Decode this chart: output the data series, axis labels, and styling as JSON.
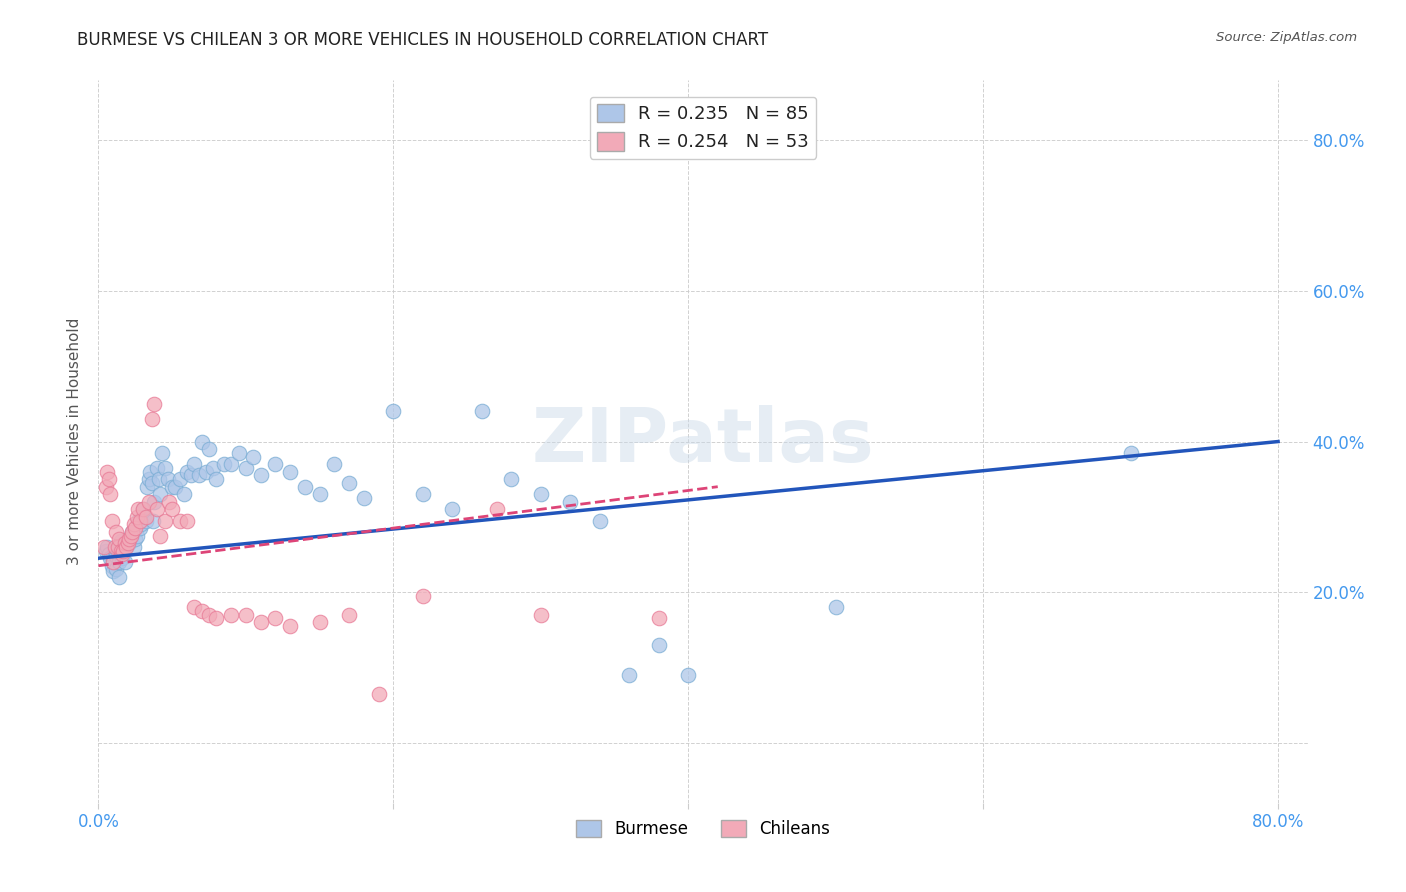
{
  "title": "BURMESE VS CHILEAN 3 OR MORE VEHICLES IN HOUSEHOLD CORRELATION CHART",
  "source": "Source: ZipAtlas.com",
  "ylabel": "3 or more Vehicles in Household",
  "xlim": [
    0.0,
    0.82
  ],
  "ylim": [
    -0.08,
    0.88
  ],
  "xticks": [
    0.0,
    0.2,
    0.4,
    0.6,
    0.8
  ],
  "yticks": [
    0.0,
    0.2,
    0.4,
    0.6,
    0.8
  ],
  "xticklabels": [
    "0.0%",
    "",
    "",
    "",
    "80.0%"
  ],
  "yticklabels_right": [
    "",
    "20.0%",
    "40.0%",
    "60.0%",
    "80.0%"
  ],
  "burmese_color": "#aec6e8",
  "chilean_color": "#f2aab8",
  "burmese_edge_color": "#7aadd4",
  "chilean_edge_color": "#e87a96",
  "burmese_line_color": "#2255bb",
  "chilean_line_color": "#dd4477",
  "burmese_R": 0.235,
  "burmese_N": 85,
  "chilean_R": 0.254,
  "chilean_N": 53,
  "watermark": "ZIPatlas",
  "legend_label_burmese": "Burmese",
  "legend_label_chilean": "Chileans",
  "burmese_line_x0": 0.0,
  "burmese_line_y0": 0.245,
  "burmese_line_x1": 0.8,
  "burmese_line_y1": 0.4,
  "chilean_line_x0": 0.0,
  "chilean_line_y0": 0.235,
  "chilean_line_x1": 0.42,
  "chilean_line_y1": 0.34,
  "burmese_x": [
    0.005,
    0.006,
    0.007,
    0.008,
    0.009,
    0.01,
    0.01,
    0.011,
    0.012,
    0.012,
    0.013,
    0.013,
    0.014,
    0.014,
    0.015,
    0.015,
    0.016,
    0.016,
    0.017,
    0.018,
    0.019,
    0.02,
    0.021,
    0.022,
    0.023,
    0.024,
    0.025,
    0.026,
    0.027,
    0.028,
    0.029,
    0.03,
    0.031,
    0.032,
    0.033,
    0.034,
    0.035,
    0.036,
    0.037,
    0.038,
    0.04,
    0.041,
    0.042,
    0.043,
    0.045,
    0.047,
    0.05,
    0.052,
    0.055,
    0.058,
    0.06,
    0.063,
    0.065,
    0.068,
    0.07,
    0.073,
    0.075,
    0.078,
    0.08,
    0.085,
    0.09,
    0.095,
    0.1,
    0.105,
    0.11,
    0.12,
    0.13,
    0.14,
    0.15,
    0.16,
    0.17,
    0.18,
    0.2,
    0.22,
    0.24,
    0.26,
    0.28,
    0.3,
    0.32,
    0.34,
    0.36,
    0.38,
    0.4,
    0.5,
    0.7
  ],
  "burmese_y": [
    0.255,
    0.26,
    0.25,
    0.245,
    0.235,
    0.228,
    0.24,
    0.255,
    0.248,
    0.23,
    0.26,
    0.25,
    0.24,
    0.22,
    0.26,
    0.268,
    0.258,
    0.245,
    0.255,
    0.24,
    0.26,
    0.27,
    0.265,
    0.275,
    0.28,
    0.26,
    0.27,
    0.275,
    0.295,
    0.285,
    0.29,
    0.31,
    0.3,
    0.295,
    0.34,
    0.35,
    0.36,
    0.345,
    0.295,
    0.32,
    0.365,
    0.35,
    0.33,
    0.385,
    0.365,
    0.35,
    0.34,
    0.34,
    0.35,
    0.33,
    0.36,
    0.355,
    0.37,
    0.355,
    0.4,
    0.36,
    0.39,
    0.365,
    0.35,
    0.37,
    0.37,
    0.385,
    0.365,
    0.38,
    0.355,
    0.37,
    0.36,
    0.34,
    0.33,
    0.37,
    0.345,
    0.325,
    0.44,
    0.33,
    0.31,
    0.44,
    0.35,
    0.33,
    0.32,
    0.295,
    0.09,
    0.13,
    0.09,
    0.18,
    0.385
  ],
  "chilean_x": [
    0.004,
    0.005,
    0.006,
    0.007,
    0.008,
    0.009,
    0.01,
    0.011,
    0.012,
    0.013,
    0.014,
    0.015,
    0.016,
    0.017,
    0.018,
    0.019,
    0.02,
    0.021,
    0.022,
    0.023,
    0.024,
    0.025,
    0.026,
    0.027,
    0.028,
    0.03,
    0.032,
    0.034,
    0.036,
    0.038,
    0.04,
    0.042,
    0.045,
    0.048,
    0.05,
    0.055,
    0.06,
    0.065,
    0.07,
    0.075,
    0.08,
    0.09,
    0.1,
    0.11,
    0.12,
    0.13,
    0.15,
    0.17,
    0.19,
    0.22,
    0.27,
    0.3,
    0.38
  ],
  "chilean_y": [
    0.26,
    0.34,
    0.36,
    0.35,
    0.33,
    0.295,
    0.24,
    0.26,
    0.28,
    0.26,
    0.27,
    0.255,
    0.25,
    0.255,
    0.265,
    0.26,
    0.265,
    0.27,
    0.275,
    0.28,
    0.29,
    0.285,
    0.3,
    0.31,
    0.295,
    0.31,
    0.3,
    0.32,
    0.43,
    0.45,
    0.31,
    0.275,
    0.295,
    0.32,
    0.31,
    0.295,
    0.295,
    0.18,
    0.175,
    0.17,
    0.165,
    0.17,
    0.17,
    0.16,
    0.165,
    0.155,
    0.16,
    0.17,
    0.065,
    0.195,
    0.31,
    0.17,
    0.165
  ]
}
